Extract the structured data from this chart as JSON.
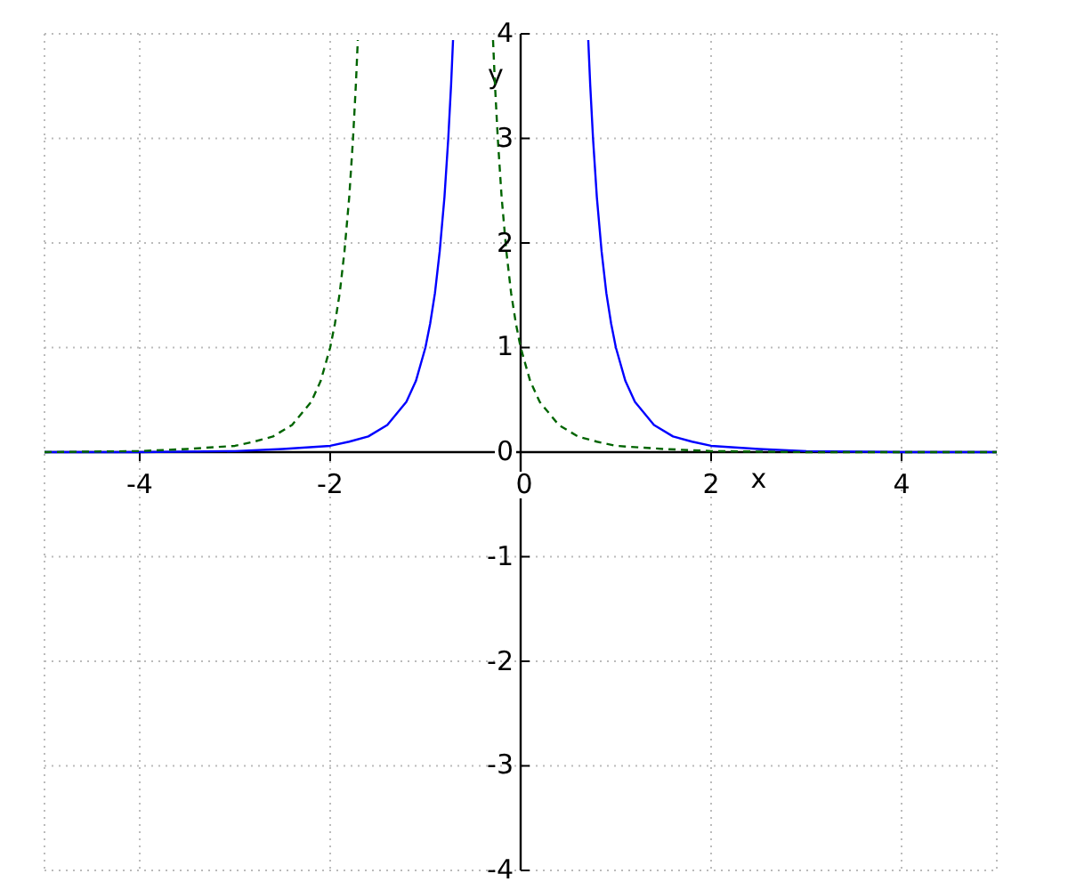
{
  "chart_data": {
    "type": "line",
    "xlabel": "x",
    "ylabel": "y",
    "xlim": [
      -5,
      5
    ],
    "ylim": [
      -4,
      4
    ],
    "xticks": [
      -4,
      -2,
      0,
      2,
      4
    ],
    "yticks": [
      -4,
      -3,
      -2,
      -1,
      0,
      1,
      2,
      3,
      4
    ],
    "grid": true,
    "legend": false,
    "marker": "none",
    "series": [
      {
        "color": "#0000ff",
        "line_style": "solid",
        "x": [
          -5,
          -4,
          -3,
          -2.5,
          -2,
          -1.8,
          -1.6,
          -1.4,
          -1.2,
          -1.1,
          -1,
          -0.95,
          -0.9,
          -0.85,
          -0.8,
          -0.76,
          -0.73,
          -0.71,
          0,
          0.71,
          0.73,
          0.76,
          0.8,
          0.85,
          0.9,
          0.95,
          1,
          1.1,
          1.2,
          1.4,
          1.6,
          1.8,
          2,
          2.5,
          3,
          4,
          5
        ],
        "values": [
          0,
          0,
          0.01,
          0.03,
          0.06,
          0.1,
          0.15,
          0.26,
          0.48,
          0.68,
          1,
          1.23,
          1.52,
          1.92,
          2.44,
          3,
          3.52,
          3.94,
          null,
          3.94,
          3.52,
          3,
          2.44,
          1.92,
          1.52,
          1.23,
          1,
          0.68,
          0.48,
          0.26,
          0.15,
          0.1,
          0.06,
          0.03,
          0.01,
          0,
          0
        ]
      },
      {
        "color": "#006400",
        "line_style": "dashed",
        "x": [
          -5,
          -4,
          -3.5,
          -3,
          -2.8,
          -2.6,
          -2.4,
          -2.2,
          -2.1,
          -2,
          -1.95,
          -1.9,
          -1.85,
          -1.8,
          -1.76,
          -1.73,
          -1.71,
          -1,
          -0.29,
          -0.27,
          -0.24,
          -0.2,
          -0.15,
          -0.1,
          -0.05,
          0,
          0.1,
          0.2,
          0.4,
          0.6,
          0.8,
          1,
          1.5,
          2,
          3,
          4,
          5
        ],
        "values": [
          0,
          0.01,
          0.03,
          0.06,
          0.1,
          0.15,
          0.26,
          0.48,
          0.68,
          1,
          1.23,
          1.52,
          1.92,
          2.44,
          3,
          3.52,
          3.94,
          null,
          3.94,
          3.52,
          3,
          2.44,
          1.92,
          1.52,
          1.23,
          1,
          0.68,
          0.48,
          0.26,
          0.15,
          0.1,
          0.06,
          0.03,
          0.01,
          0,
          0,
          0
        ]
      }
    ]
  }
}
